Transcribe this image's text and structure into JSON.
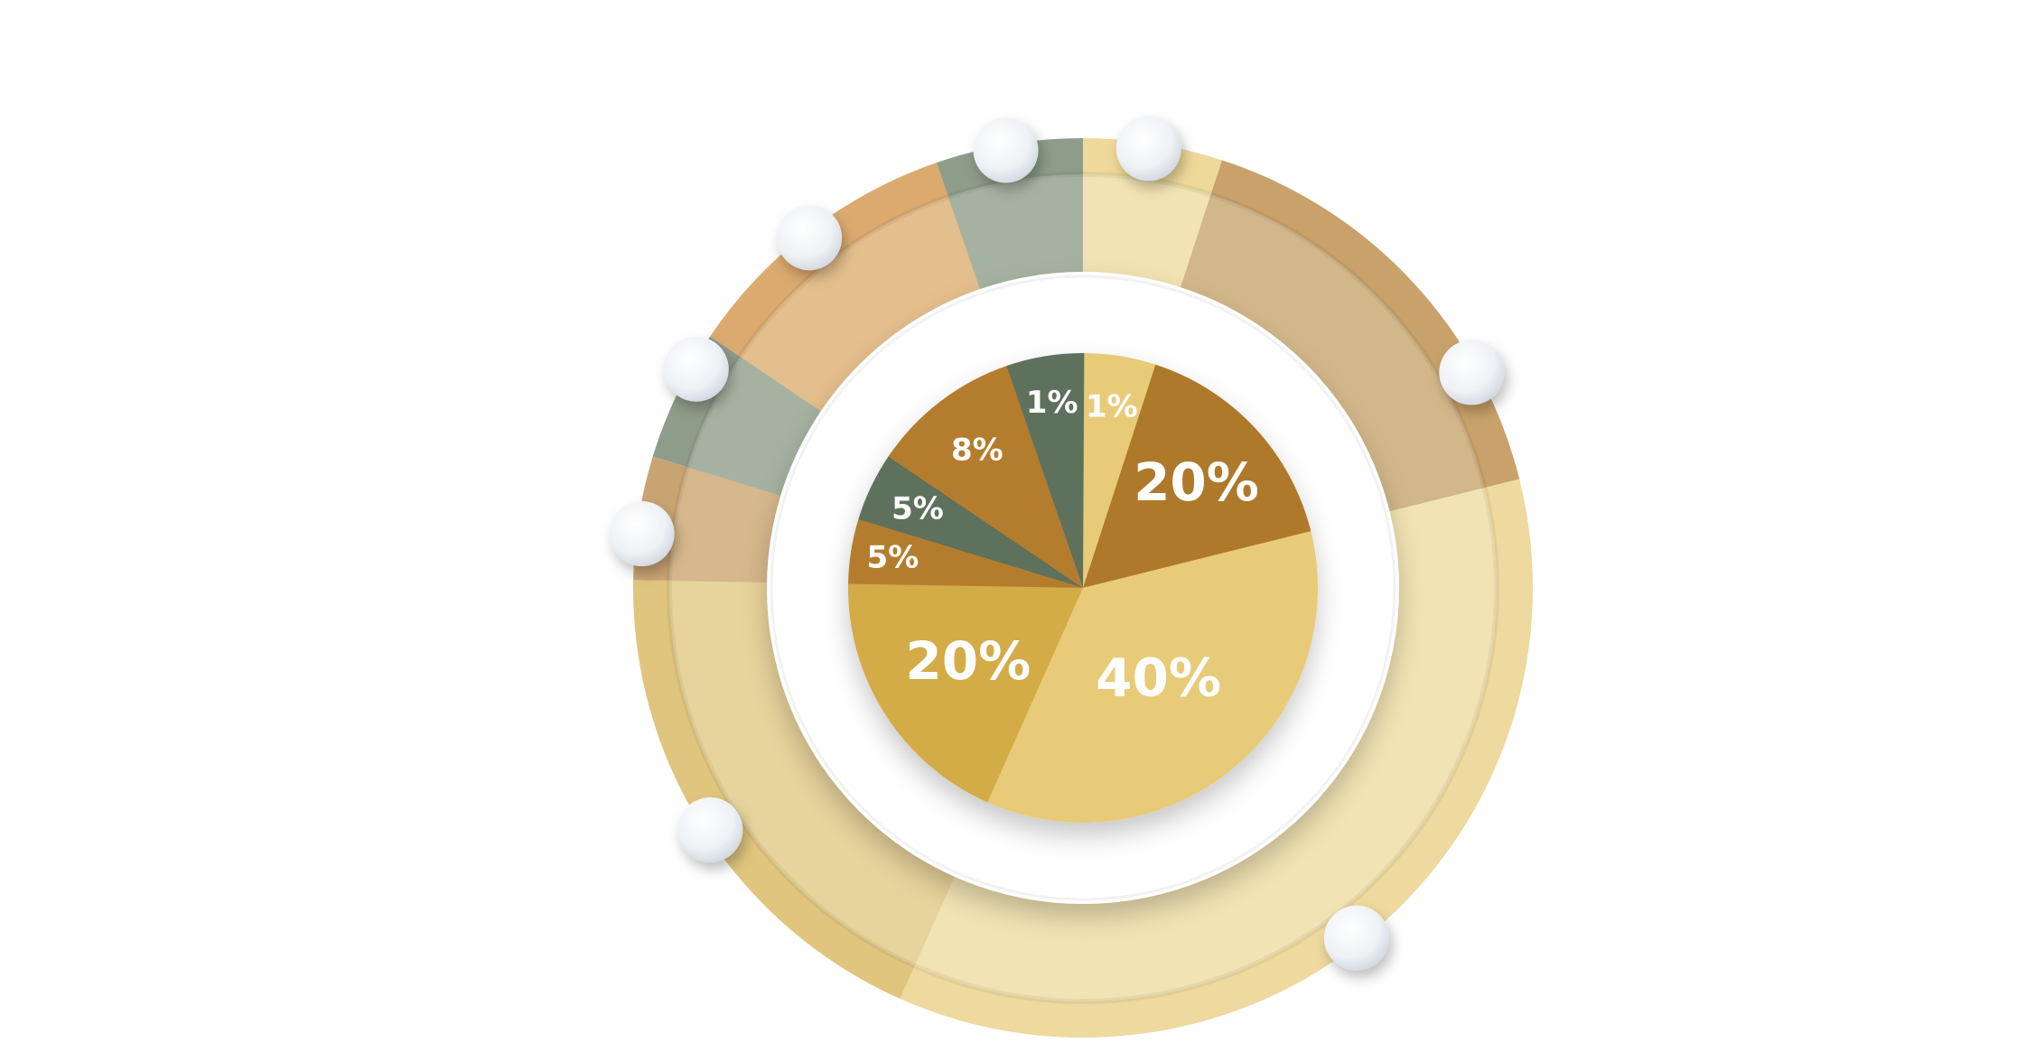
{
  "chart_data": {
    "type": "pie",
    "title": "",
    "start": "top",
    "direction": "clockwise",
    "slices": [
      {
        "label": "1%",
        "value": 1,
        "color": "#e8cb78",
        "ring_color": "#f1e3b3",
        "ring_edge": "#efd99a"
      },
      {
        "label": "20%",
        "value": 20,
        "color": "#ae792b",
        "ring_color": "#d2b78a",
        "ring_edge": "#c8a26a"
      },
      {
        "label": "40%",
        "value": 40,
        "color": "#e8cb78",
        "ring_color": "#f1e3b3",
        "ring_edge": "#eed99e"
      },
      {
        "label": "20%",
        "value": 20,
        "color": "#d3ab46",
        "ring_color": "#e7d39c",
        "ring_edge": "#e0c57e"
      },
      {
        "label": "5%",
        "value": 5,
        "color": "#b47d2e",
        "ring_color": "#d6b88c",
        "ring_edge": "#c9a473"
      },
      {
        "label": "5%",
        "value": 5,
        "color": "#5d715b",
        "ring_color": "#a6b2a1",
        "ring_edge": "#8e9c8a"
      },
      {
        "label": "8%",
        "value": 8,
        "color": "#b47d2e",
        "ring_color": "#e4bf8e",
        "ring_edge": "#dcaa6f"
      },
      {
        "label": "1%",
        "value": 1,
        "color": "#5d715b",
        "ring_color": "#a6b2a1",
        "ring_edge": "#8e9c8a"
      }
    ],
    "legend": "none",
    "decorations": {
      "outer_ring": true,
      "marker_knobs": 8,
      "knob_color": "#eef1f5"
    }
  }
}
